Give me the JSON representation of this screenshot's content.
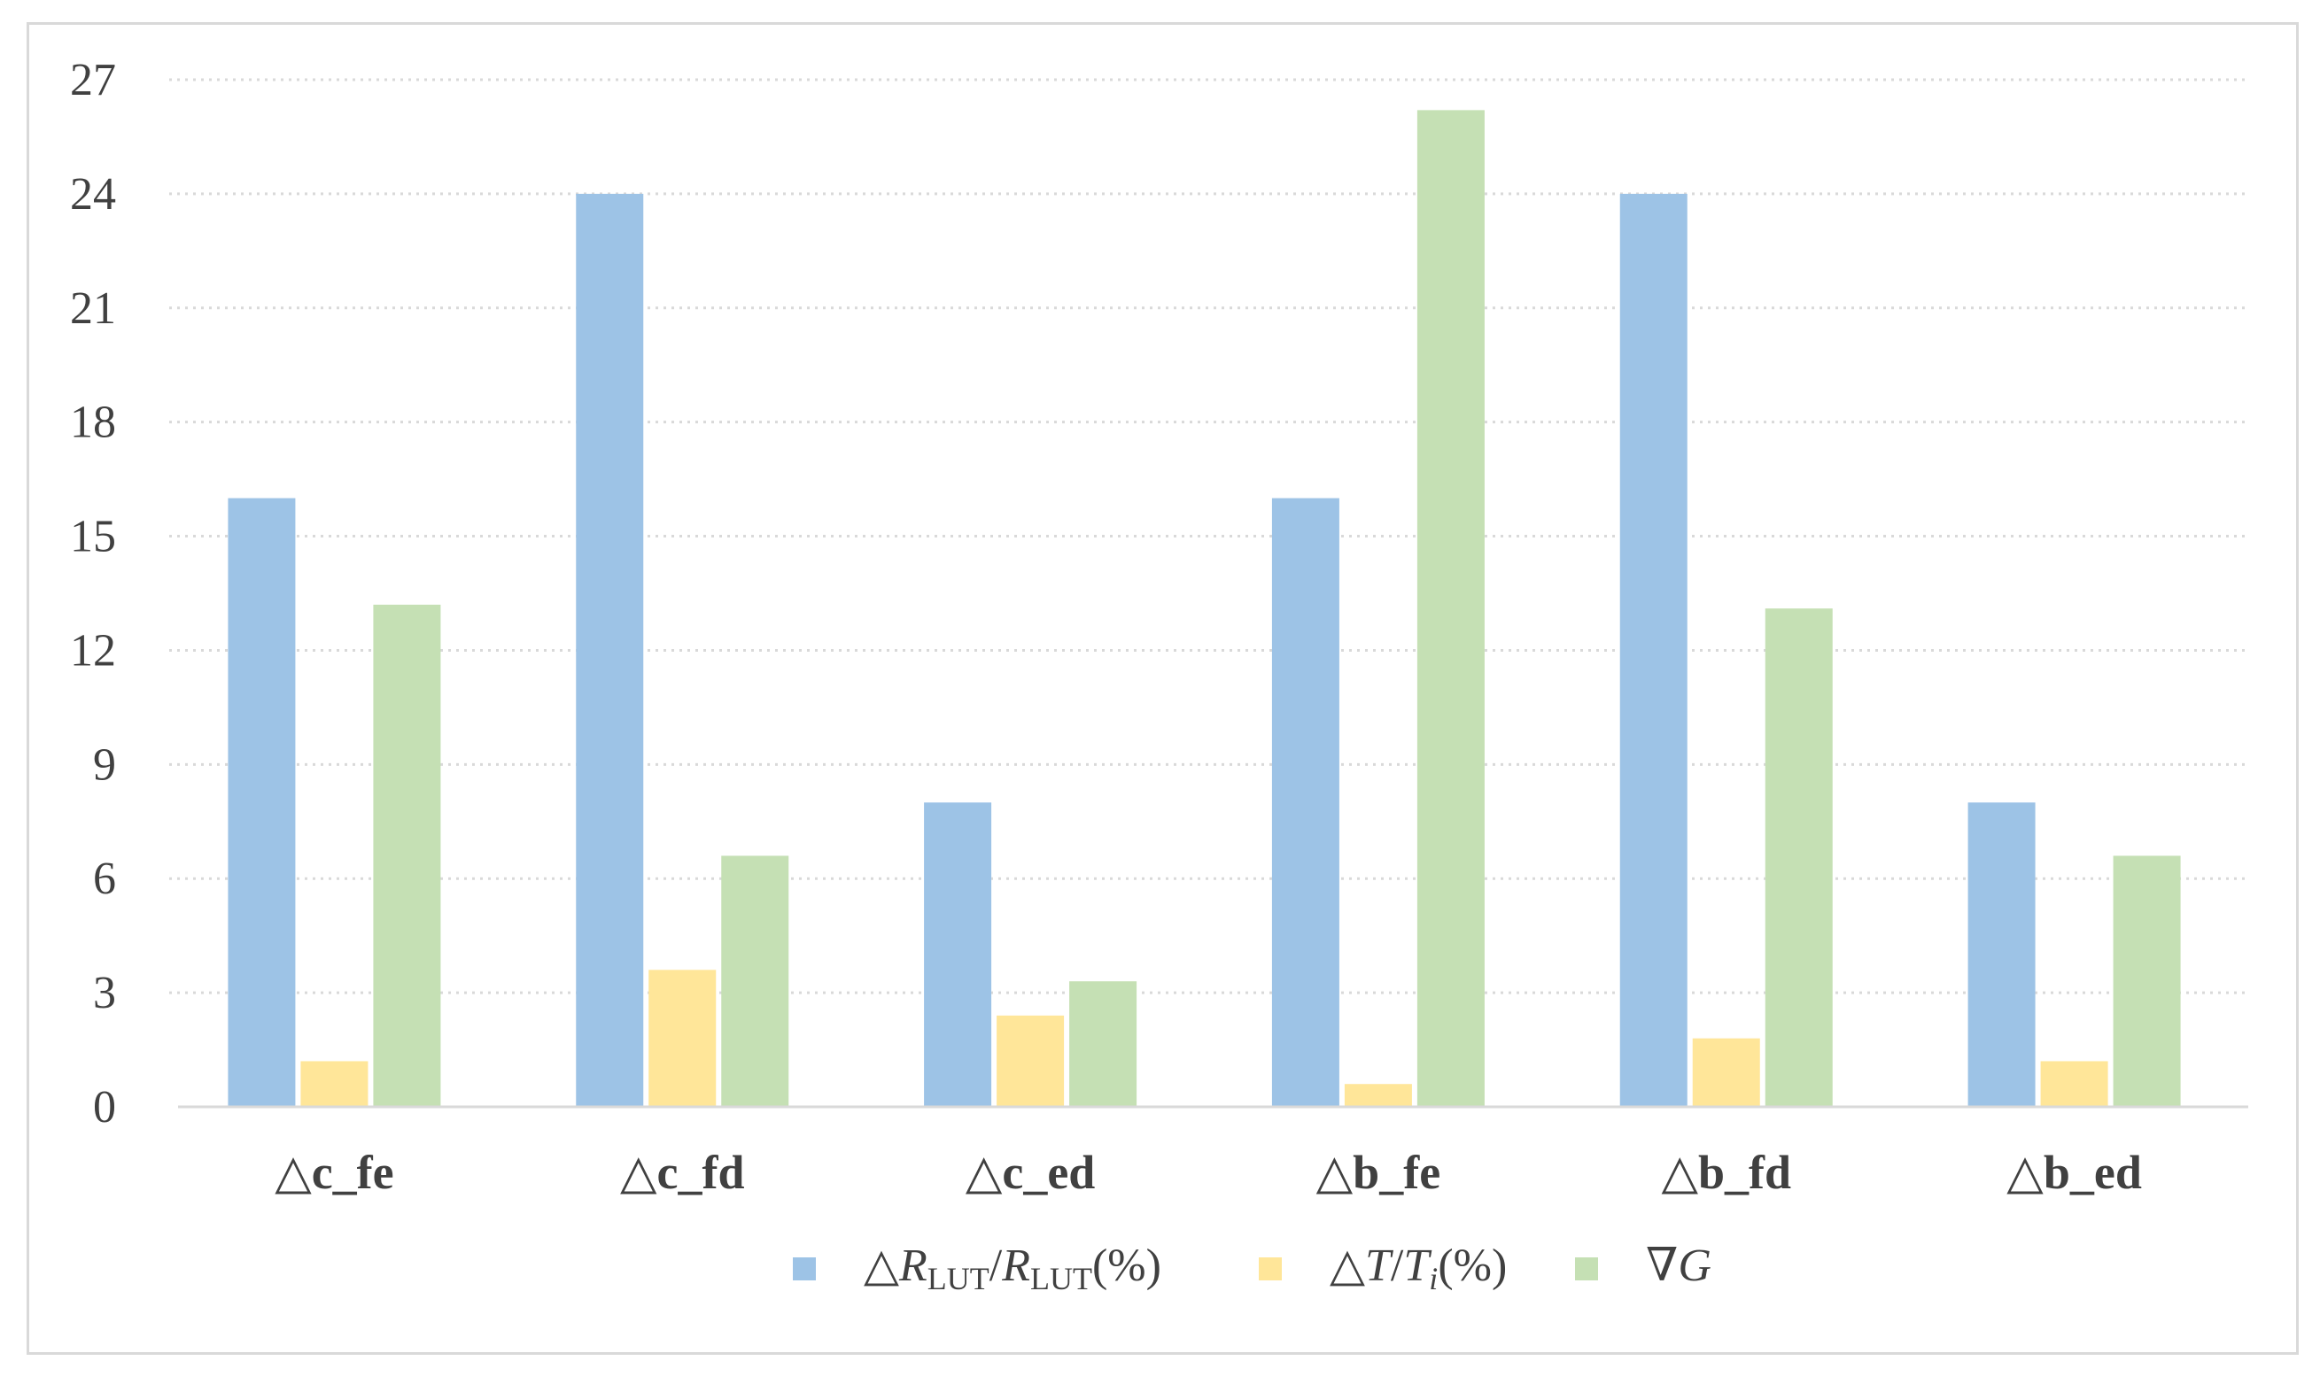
{
  "chart_data": {
    "type": "bar",
    "categories": [
      "△c_fe",
      "△c_fd",
      "△c_ed",
      "△b_fe",
      "△b_fd",
      "△b_ed"
    ],
    "series": [
      {
        "name": "△RLUT/RLUT(%)",
        "legend_parts": [
          {
            "text": "△",
            "style": "normal"
          },
          {
            "text": "R",
            "style": "italic"
          },
          {
            "text": "LUT",
            "style": "sub"
          },
          {
            "text": "/",
            "style": "normal"
          },
          {
            "text": "R",
            "style": "italic"
          },
          {
            "text": "LUT",
            "style": "sub"
          },
          {
            "text": "(%)",
            "style": "normal"
          }
        ],
        "color": "#9dc3e6",
        "values": [
          16,
          24,
          8,
          16,
          24,
          8
        ]
      },
      {
        "name": "△T/Ti(%)",
        "legend_parts": [
          {
            "text": "△",
            "style": "normal"
          },
          {
            "text": "T",
            "style": "italic"
          },
          {
            "text": "/",
            "style": "normal"
          },
          {
            "text": "T",
            "style": "italic"
          },
          {
            "text": "i",
            "style": "italic-sub"
          },
          {
            "text": "(%)",
            "style": "normal"
          }
        ],
        "color": "#ffe699",
        "values": [
          1.2,
          3.6,
          2.4,
          0.6,
          1.8,
          1.2
        ]
      },
      {
        "name": "∇G",
        "legend_parts": [
          {
            "text": "∇",
            "style": "normal"
          },
          {
            "text": "G",
            "style": "italic"
          }
        ],
        "color": "#c5e0b4",
        "values": [
          13.2,
          6.6,
          3.3,
          26.2,
          13.1,
          6.6
        ]
      }
    ],
    "yticks": [
      "0",
      "3",
      "6",
      "9",
      "12",
      "15",
      "18",
      "21",
      "24",
      "27"
    ],
    "ylim": [
      0,
      27
    ],
    "grid": true,
    "grid_style": "dotted",
    "legend_position": "bottom",
    "title": "",
    "xlabel": "",
    "ylabel": ""
  }
}
